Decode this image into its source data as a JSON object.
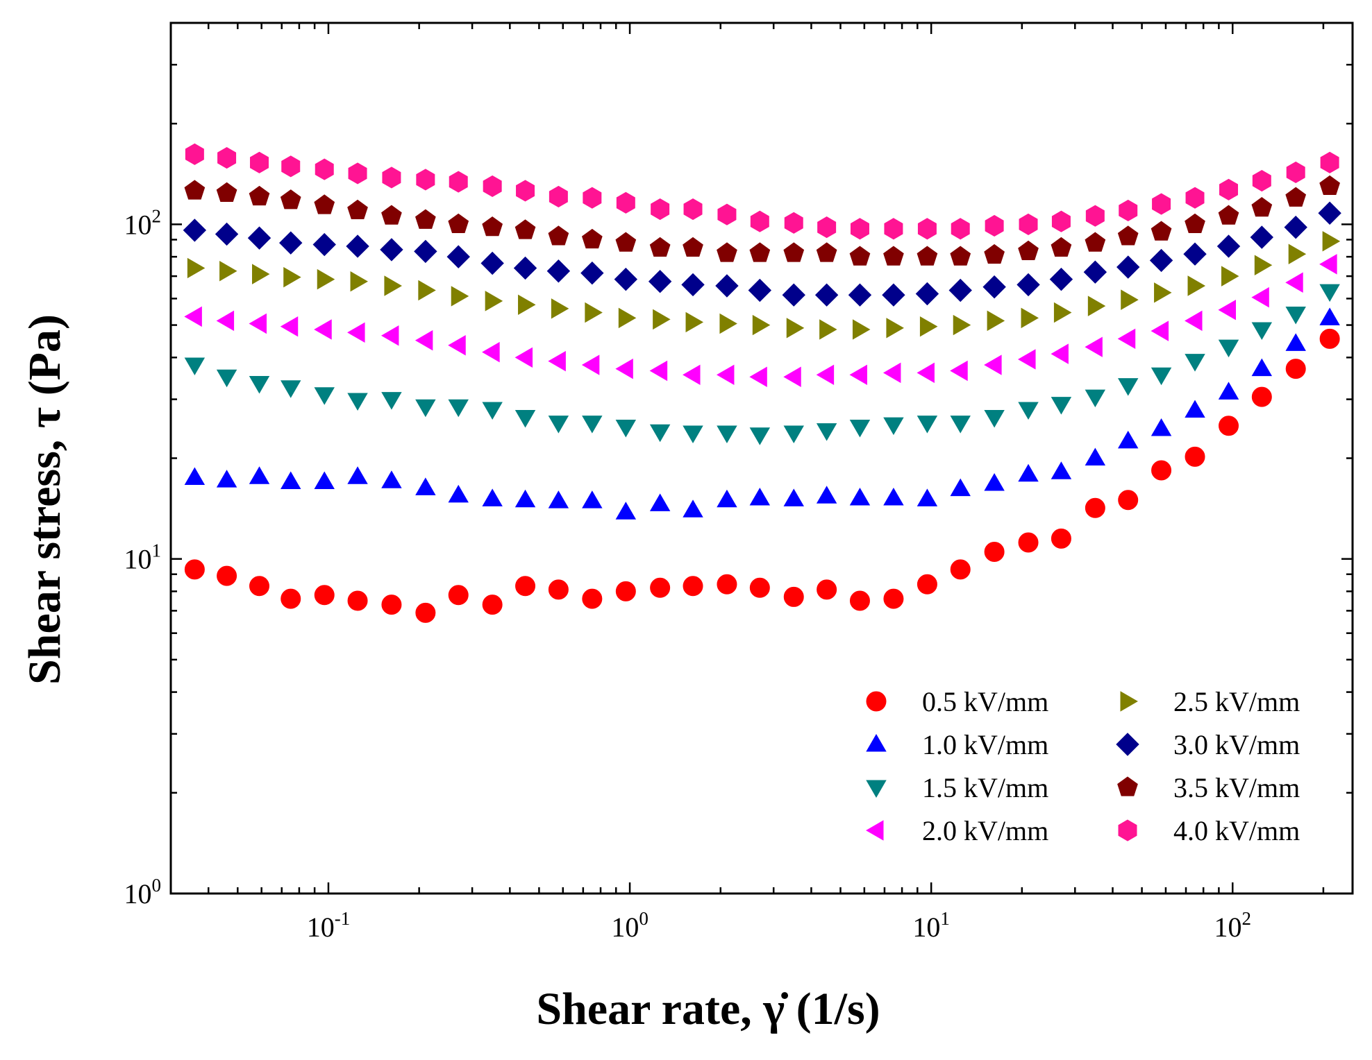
{
  "chart_data": {
    "type": "scatter",
    "title": "",
    "xlabel": "Shear rate, γ̇ (1/s)",
    "ylabel": "Shear stress, τ (Pa)",
    "xscale": "log",
    "yscale": "log",
    "xlim": [
      0.03,
      250
    ],
    "ylim": [
      1,
      400
    ],
    "x_ticks": [
      {
        "value": 0.1,
        "base": "10",
        "exp": "-1"
      },
      {
        "value": 1,
        "base": "10",
        "exp": "0"
      },
      {
        "value": 10,
        "base": "10",
        "exp": "1"
      },
      {
        "value": 100,
        "base": "10",
        "exp": "2"
      }
    ],
    "y_ticks": [
      {
        "value": 1,
        "base": "10",
        "exp": "0"
      },
      {
        "value": 10,
        "base": "10",
        "exp": "1"
      },
      {
        "value": 100,
        "base": "10",
        "exp": "2"
      }
    ],
    "legend_position": "bottom-right",
    "x": [
      0.036,
      0.046,
      0.059,
      0.075,
      0.097,
      0.125,
      0.162,
      0.21,
      0.27,
      0.35,
      0.45,
      0.58,
      0.75,
      0.97,
      1.26,
      1.62,
      2.1,
      2.7,
      3.5,
      4.5,
      5.8,
      7.5,
      9.7,
      12.5,
      16.2,
      21,
      27,
      35,
      45,
      58,
      75,
      97,
      125,
      162,
      210
    ],
    "series": [
      {
        "name": "0.5 kV/mm",
        "marker": "circle",
        "color": "#ff0000",
        "values": [
          9.3,
          8.9,
          8.3,
          7.6,
          7.8,
          7.5,
          7.3,
          6.9,
          7.8,
          7.3,
          8.3,
          8.1,
          7.6,
          8.0,
          8.2,
          8.3,
          8.4,
          8.2,
          7.7,
          8.1,
          7.5,
          7.6,
          8.4,
          9.3,
          10.5,
          11.2,
          11.5,
          14.2,
          15.0,
          18.4,
          20.2,
          25.0,
          30.5,
          37.0,
          45.5
        ]
      },
      {
        "name": "1.0 kV/mm",
        "marker": "triangle-up",
        "color": "#0000ff",
        "values": [
          17.5,
          17.2,
          17.6,
          17.0,
          17.0,
          17.6,
          17.1,
          16.3,
          15.5,
          15.1,
          15.0,
          14.9,
          14.9,
          13.8,
          14.6,
          14.0,
          15.0,
          15.2,
          15.1,
          15.4,
          15.2,
          15.2,
          15.1,
          16.2,
          16.8,
          17.9,
          18.2,
          20.0,
          22.5,
          24.5,
          27.8,
          31.5,
          37.0,
          44.0,
          52.5
        ]
      },
      {
        "name": "1.5 kV/mm",
        "marker": "triangle-down",
        "color": "#008080",
        "values": [
          38.0,
          35.0,
          33.5,
          32.5,
          31.0,
          29.8,
          30.0,
          28.5,
          28.5,
          28.0,
          26.5,
          25.5,
          25.5,
          24.8,
          24.0,
          23.8,
          23.8,
          23.5,
          23.8,
          24.2,
          24.8,
          25.2,
          25.5,
          25.5,
          26.5,
          28.0,
          29.0,
          30.5,
          33.0,
          35.5,
          39.0,
          43.0,
          48.5,
          54.0,
          63.0
        ]
      },
      {
        "name": "2.0 kV/mm",
        "marker": "triangle-left",
        "color": "#ff00ff",
        "values": [
          53.0,
          51.5,
          50.5,
          49.5,
          48.5,
          47.5,
          46.5,
          45.0,
          43.5,
          41.5,
          40.0,
          39.0,
          38.0,
          37.0,
          36.5,
          35.5,
          35.5,
          35.0,
          35.0,
          35.5,
          35.5,
          36.0,
          36.0,
          36.5,
          38.0,
          39.5,
          41.0,
          43.0,
          45.5,
          48.0,
          51.5,
          55.5,
          60.5,
          67.0,
          76.0
        ]
      },
      {
        "name": "2.5 kV/mm",
        "marker": "triangle-right",
        "color": "#808000",
        "values": [
          74.0,
          72.5,
          71.0,
          69.5,
          68.5,
          67.5,
          65.5,
          63.5,
          61.0,
          59.0,
          57.5,
          56.0,
          54.5,
          52.5,
          52.0,
          51.0,
          50.5,
          50.0,
          49.0,
          48.5,
          48.5,
          49.0,
          49.5,
          50.0,
          51.5,
          52.5,
          54.5,
          57.0,
          59.5,
          62.5,
          65.5,
          70.0,
          75.5,
          81.5,
          89.0
        ]
      },
      {
        "name": "3.0 kV/mm",
        "marker": "diamond",
        "color": "#00008b",
        "values": [
          96.0,
          93.5,
          91.0,
          88.0,
          87.0,
          86.0,
          84.0,
          83.0,
          80.0,
          76.5,
          74.0,
          72.5,
          71.5,
          68.5,
          67.5,
          66.0,
          65.5,
          63.5,
          61.5,
          61.5,
          61.5,
          61.5,
          62.0,
          63.5,
          65.0,
          66.0,
          68.5,
          72.0,
          74.5,
          78.0,
          81.5,
          86.0,
          91.5,
          98.0,
          108.0
        ]
      },
      {
        "name": "3.5 kV/mm",
        "marker": "pentagon",
        "color": "#800000",
        "values": [
          126.0,
          124.0,
          121.0,
          118.0,
          114.0,
          110.0,
          106.0,
          103.0,
          100.0,
          98.0,
          96.0,
          92.0,
          90.0,
          88.0,
          85.0,
          85.0,
          82.0,
          82.0,
          82.0,
          82.0,
          80.0,
          80.0,
          80.0,
          80.0,
          81.0,
          83.0,
          85.0,
          88.0,
          92.0,
          95.0,
          100.0,
          106.0,
          112.0,
          120.0,
          130.0
        ]
      },
      {
        "name": "4.0 kV/mm",
        "marker": "hexagon",
        "color": "#ff1493",
        "values": [
          162.0,
          158.0,
          153.0,
          149.0,
          146.0,
          142.0,
          138.0,
          136.0,
          134.0,
          130.0,
          126.0,
          121.0,
          120.0,
          116.0,
          111.0,
          111.0,
          107.0,
          102.0,
          101.0,
          98.0,
          97.0,
          97.0,
          97.0,
          97.0,
          99.0,
          100.0,
          102.0,
          106.0,
          110.0,
          115.0,
          120.0,
          127.0,
          135.0,
          143.0,
          153.0
        ]
      }
    ]
  }
}
